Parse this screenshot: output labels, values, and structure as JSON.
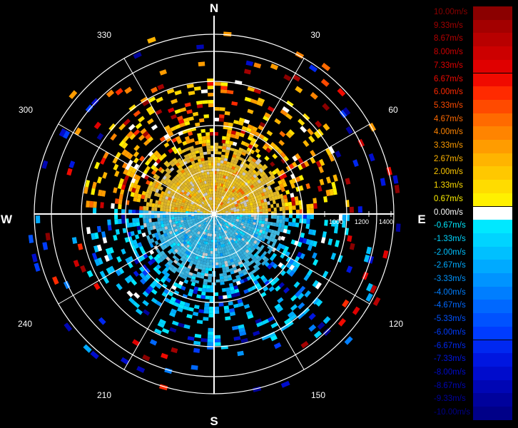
{
  "compass": {
    "north": "N",
    "south": "S",
    "east": "E",
    "west": "W"
  },
  "azimuth_labels": [
    "30",
    "60",
    "120",
    "150",
    "210",
    "240",
    "300",
    "330"
  ],
  "range_labels": [
    "1000",
    "1200",
    "1400"
  ],
  "legend": [
    {
      "label": "10.00m/s",
      "color": "#8b0000"
    },
    {
      "label": "9.33m/s",
      "color": "#a30000"
    },
    {
      "label": "8.67m/s",
      "color": "#b80000"
    },
    {
      "label": "8.00m/s",
      "color": "#cc0000"
    },
    {
      "label": "7.33m/s",
      "color": "#e00000"
    },
    {
      "label": "6.67m/s",
      "color": "#f00a00"
    },
    {
      "label": "6.00m/s",
      "color": "#ff2a00"
    },
    {
      "label": "5.33m/s",
      "color": "#ff4a00"
    },
    {
      "label": "4.67m/s",
      "color": "#ff6a00"
    },
    {
      "label": "4.00m/s",
      "color": "#ff8400"
    },
    {
      "label": "3.33m/s",
      "color": "#ff9c00"
    },
    {
      "label": "2.67m/s",
      "color": "#ffb400"
    },
    {
      "label": "2.00m/s",
      "color": "#ffc800"
    },
    {
      "label": "1.33m/s",
      "color": "#ffdc00"
    },
    {
      "label": "0.67m/s",
      "color": "#fff000"
    },
    {
      "label": "0.00m/s",
      "color": "#ffffff"
    },
    {
      "label": "-0.67m/s",
      "color": "#00e8ff"
    },
    {
      "label": "-1.33m/s",
      "color": "#00d4ff"
    },
    {
      "label": "-2.00m/s",
      "color": "#00c0ff"
    },
    {
      "label": "-2.67m/s",
      "color": "#00aaff"
    },
    {
      "label": "-3.33m/s",
      "color": "#0094ff"
    },
    {
      "label": "-4.00m/s",
      "color": "#007eff"
    },
    {
      "label": "-4.67m/s",
      "color": "#0068ff"
    },
    {
      "label": "-5.33m/s",
      "color": "#0052ff"
    },
    {
      "label": "-6.00m/s",
      "color": "#003cff"
    },
    {
      "label": "-6.67m/s",
      "color": "#0028f0"
    },
    {
      "label": "-7.33m/s",
      "color": "#0016e0"
    },
    {
      "label": "-8.00m/s",
      "color": "#000ccc"
    },
    {
      "label": "-8.67m/s",
      "color": "#0006b4"
    },
    {
      "label": "-9.33m/s",
      "color": "#00029c"
    },
    {
      "label": "-10.00m/s",
      "color": "#000088"
    }
  ],
  "colors": {
    "background": "#000000",
    "grid": "#ffffff",
    "near_positive": "#e8c020",
    "near_negative": "#40b8e0"
  }
}
